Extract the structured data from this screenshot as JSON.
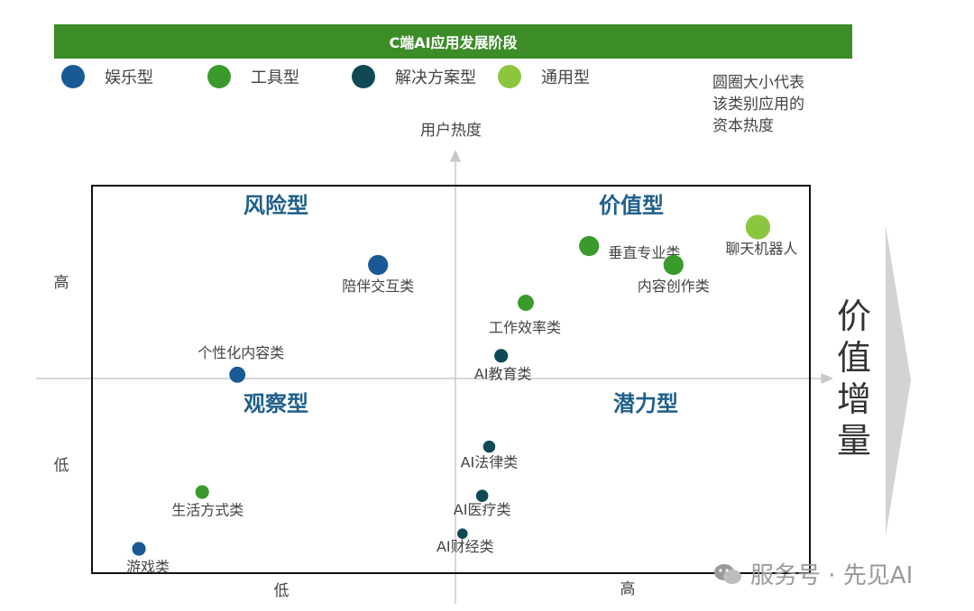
{
  "title": "C端AI应用发展阶段",
  "legend": [
    {
      "label": "娱乐型",
      "color": "#1a5a94"
    },
    {
      "label": "工具型",
      "color": "#3a9a2c"
    },
    {
      "label": "解决方案型",
      "color": "#0f4a54"
    },
    {
      "label": "通用型",
      "color": "#8cc63f"
    }
  ],
  "note_lines": [
    "圆圈大小代表",
    "该类别应用的",
    "资本热度"
  ],
  "value_label": [
    "价",
    "值",
    "增",
    "量"
  ],
  "watermark": "服务号 · 先见AI",
  "chart_data": {
    "type": "scatter",
    "title": "C端AI应用发展阶段",
    "ylabel": "用户热度",
    "y_ticks": [
      "高",
      "低"
    ],
    "x_ticks": [
      "低",
      "高"
    ],
    "xlim": [
      -5,
      5
    ],
    "ylim": [
      -5,
      5
    ],
    "quadrants": [
      "风险型",
      "价值型",
      "观察型",
      "潜力型"
    ],
    "points": [
      {
        "label": "陪伴交互类",
        "category": "娱乐型",
        "x": -1.1,
        "y": 3.0,
        "size": 5
      },
      {
        "label": "个性化内容类",
        "category": "娱乐型",
        "x": -3.1,
        "y": 0.1,
        "size": 3
      },
      {
        "label": "游戏类",
        "category": "娱乐型",
        "x": -4.5,
        "y": -4.5,
        "size": 2
      },
      {
        "label": "生活方式类",
        "category": "工具型",
        "x": -3.6,
        "y": -3.0,
        "size": 2
      },
      {
        "label": "垂直专业类",
        "category": "工具型",
        "x": 1.9,
        "y": 3.5,
        "size": 5
      },
      {
        "label": "内容创作类",
        "category": "工具型",
        "x": 3.1,
        "y": 3.0,
        "size": 5
      },
      {
        "label": "工作效率类",
        "category": "工具型",
        "x": 1.0,
        "y": 2.0,
        "size": 3
      },
      {
        "label": "AI教育类",
        "category": "解决方案型",
        "x": 0.65,
        "y": 0.6,
        "size": 2
      },
      {
        "label": "AI法律类",
        "category": "解决方案型",
        "x": 0.48,
        "y": -1.8,
        "size": 1.5
      },
      {
        "label": "AI医疗类",
        "category": "解决方案型",
        "x": 0.38,
        "y": -3.1,
        "size": 1.5
      },
      {
        "label": "AI财经类",
        "category": "解决方案型",
        "x": 0.1,
        "y": -4.1,
        "size": 1
      },
      {
        "label": "聊天机器人",
        "category": "通用型",
        "x": 4.3,
        "y": 4.0,
        "size": 8
      }
    ]
  }
}
